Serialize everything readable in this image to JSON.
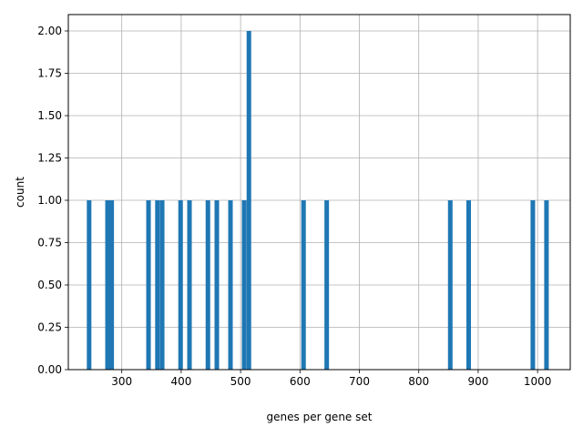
{
  "chart_data": {
    "type": "bar",
    "title": "",
    "xlabel": "genes per gene set",
    "ylabel": "count",
    "xlim": [
      210,
      1055
    ],
    "ylim": [
      0,
      2.0
    ],
    "grid": true,
    "bar_color": "#1f77b4",
    "bin_width": 7.7,
    "x_ticks": [
      "300",
      "400",
      "500",
      "600",
      "700",
      "800",
      "900",
      "1000"
    ],
    "x_tick_values": [
      300,
      400,
      500,
      600,
      700,
      800,
      900,
      1000
    ],
    "y_ticks": [
      "0.00",
      "0.25",
      "0.50",
      "0.75",
      "1.00",
      "1.25",
      "1.50",
      "1.75",
      "2.00"
    ],
    "y_tick_values": [
      0,
      0.25,
      0.5,
      0.75,
      1.0,
      1.25,
      1.5,
      1.75,
      2.0
    ],
    "bins": [
      {
        "x": 245,
        "count": 1
      },
      {
        "x": 276,
        "count": 1
      },
      {
        "x": 283,
        "count": 1
      },
      {
        "x": 345,
        "count": 1
      },
      {
        "x": 360,
        "count": 1
      },
      {
        "x": 368,
        "count": 1
      },
      {
        "x": 399,
        "count": 1
      },
      {
        "x": 414,
        "count": 1
      },
      {
        "x": 445,
        "count": 1
      },
      {
        "x": 460,
        "count": 1
      },
      {
        "x": 483,
        "count": 1
      },
      {
        "x": 506,
        "count": 1
      },
      {
        "x": 514,
        "count": 2
      },
      {
        "x": 606,
        "count": 1
      },
      {
        "x": 645,
        "count": 1
      },
      {
        "x": 853,
        "count": 1
      },
      {
        "x": 884,
        "count": 1
      },
      {
        "x": 992,
        "count": 1
      },
      {
        "x": 1015,
        "count": 1
      }
    ]
  }
}
